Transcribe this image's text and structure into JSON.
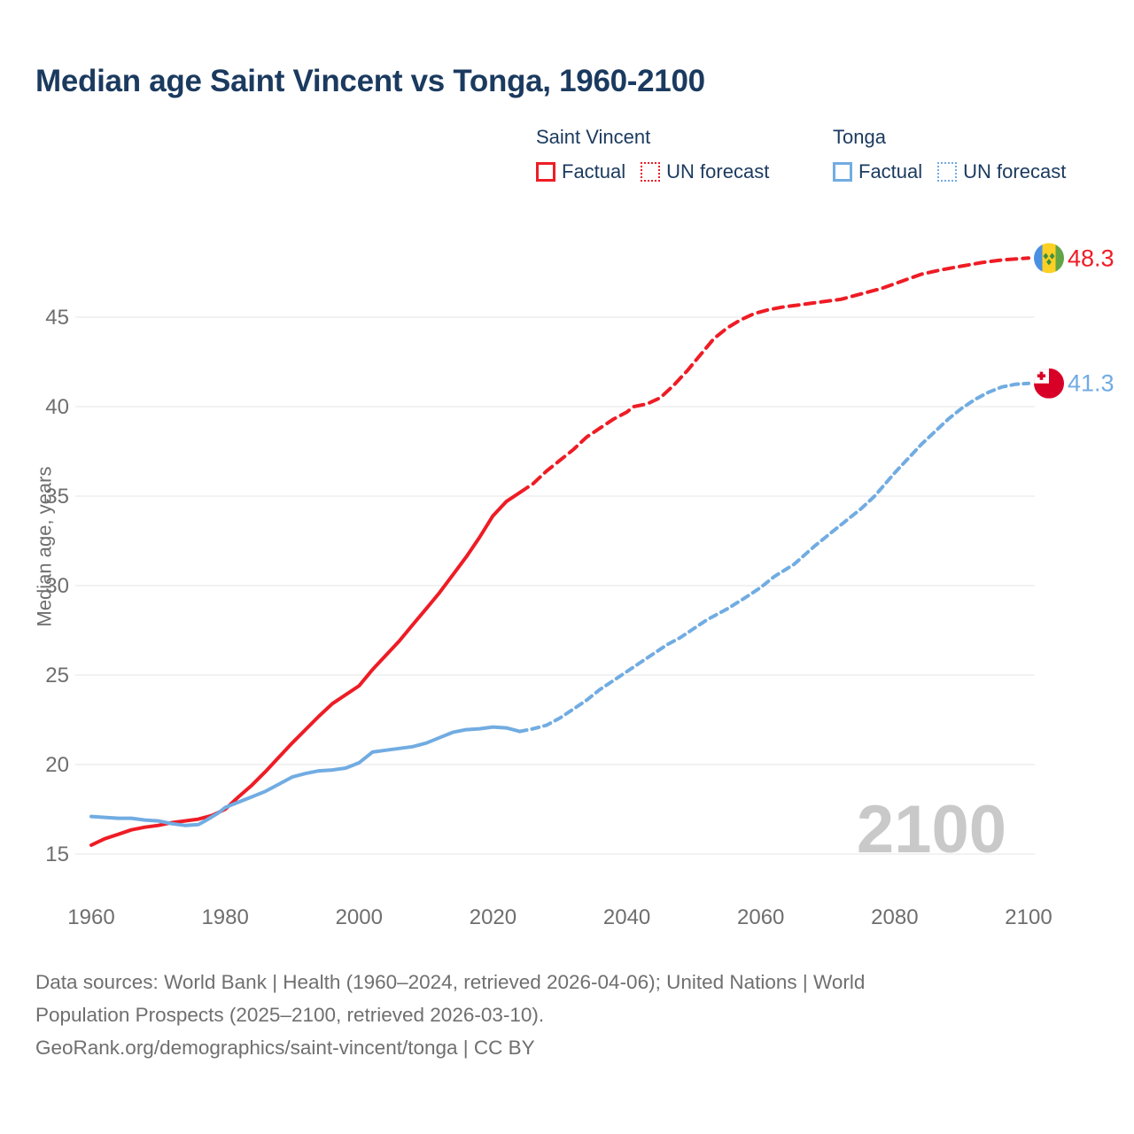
{
  "title": "Median age Saint Vincent vs Tonga, 1960-2100",
  "legend": {
    "groups": [
      {
        "name": "Saint Vincent",
        "color": "#ee1c25",
        "items": [
          {
            "label": "Factual",
            "style": "solid"
          },
          {
            "label": "UN forecast",
            "style": "dotted"
          }
        ]
      },
      {
        "name": "Tonga",
        "color": "#71ace2",
        "items": [
          {
            "label": "Factual",
            "style": "solid"
          },
          {
            "label": "UN forecast",
            "style": "dotted"
          }
        ]
      }
    ]
  },
  "chart_data": {
    "type": "line",
    "title": "Median age Saint Vincent vs Tonga, 1960-2100",
    "xlabel": "",
    "ylabel": "Median age, years",
    "x_ticks": [
      1960,
      1980,
      2000,
      2020,
      2040,
      2060,
      2080,
      2100
    ],
    "y_ticks": [
      15,
      20,
      25,
      30,
      35,
      40,
      45
    ],
    "xlim": [
      1958,
      2113
    ],
    "ylim": [
      14.5,
      49.5
    ],
    "grid": "horizontal",
    "legend_position": "top-right",
    "watermark": "2100",
    "series": [
      {
        "key": "sv-factual",
        "name": "Saint Vincent — Factual",
        "color": "#ee1c25",
        "dashed": false,
        "points": [
          [
            1960,
            15.5
          ],
          [
            1962,
            15.85
          ],
          [
            1964,
            16.1
          ],
          [
            1966,
            16.35
          ],
          [
            1968,
            16.5
          ],
          [
            1970,
            16.6
          ],
          [
            1972,
            16.75
          ],
          [
            1974,
            16.85
          ],
          [
            1976,
            16.95
          ],
          [
            1978,
            17.15
          ],
          [
            1980,
            17.5
          ],
          [
            1982,
            18.2
          ],
          [
            1984,
            18.85
          ],
          [
            1986,
            19.6
          ],
          [
            1988,
            20.4
          ],
          [
            1990,
            21.2
          ],
          [
            1992,
            21.95
          ],
          [
            1994,
            22.7
          ],
          [
            1996,
            23.4
          ],
          [
            1998,
            23.9
          ],
          [
            2000,
            24.4
          ],
          [
            2002,
            25.3
          ],
          [
            2004,
            26.1
          ],
          [
            2006,
            26.9
          ],
          [
            2008,
            27.8
          ],
          [
            2010,
            28.7
          ],
          [
            2012,
            29.6
          ],
          [
            2014,
            30.6
          ],
          [
            2016,
            31.6
          ],
          [
            2018,
            32.7
          ],
          [
            2020,
            33.9
          ],
          [
            2022,
            34.7
          ],
          [
            2024,
            35.2
          ]
        ]
      },
      {
        "key": "sv-forecast",
        "name": "Saint Vincent — UN forecast",
        "color": "#ee1c25",
        "dashed": true,
        "dash": "11 7",
        "points": [
          [
            2024,
            35.2
          ],
          [
            2026,
            35.7
          ],
          [
            2028,
            36.4
          ],
          [
            2030,
            37.0
          ],
          [
            2032,
            37.6
          ],
          [
            2034,
            38.3
          ],
          [
            2036,
            38.8
          ],
          [
            2038,
            39.3
          ],
          [
            2040,
            39.7
          ],
          [
            2041,
            40.0
          ],
          [
            2043,
            40.15
          ],
          [
            2045,
            40.5
          ],
          [
            2047,
            41.2
          ],
          [
            2049,
            42.0
          ],
          [
            2051,
            42.9
          ],
          [
            2053,
            43.8
          ],
          [
            2055,
            44.4
          ],
          [
            2057,
            44.85
          ],
          [
            2059,
            45.2
          ],
          [
            2061,
            45.4
          ],
          [
            2063,
            45.55
          ],
          [
            2066,
            45.7
          ],
          [
            2069,
            45.85
          ],
          [
            2072,
            46.0
          ],
          [
            2075,
            46.3
          ],
          [
            2078,
            46.6
          ],
          [
            2081,
            47.0
          ],
          [
            2084,
            47.4
          ],
          [
            2087,
            47.65
          ],
          [
            2090,
            47.85
          ],
          [
            2093,
            48.05
          ],
          [
            2096,
            48.2
          ],
          [
            2100,
            48.3
          ]
        ]
      },
      {
        "key": "tonga-factual",
        "name": "Tonga — Factual",
        "color": "#71ace2",
        "dashed": false,
        "points": [
          [
            1960,
            17.1
          ],
          [
            1962,
            17.05
          ],
          [
            1964,
            17.0
          ],
          [
            1966,
            17.0
          ],
          [
            1968,
            16.9
          ],
          [
            1970,
            16.85
          ],
          [
            1972,
            16.7
          ],
          [
            1974,
            16.6
          ],
          [
            1976,
            16.65
          ],
          [
            1977,
            16.85
          ],
          [
            1979,
            17.3
          ],
          [
            1980,
            17.6
          ],
          [
            1982,
            17.9
          ],
          [
            1984,
            18.2
          ],
          [
            1986,
            18.5
          ],
          [
            1988,
            18.9
          ],
          [
            1990,
            19.3
          ],
          [
            1992,
            19.5
          ],
          [
            1994,
            19.65
          ],
          [
            1996,
            19.7
          ],
          [
            1998,
            19.8
          ],
          [
            2000,
            20.1
          ],
          [
            2002,
            20.7
          ],
          [
            2004,
            20.8
          ],
          [
            2006,
            20.9
          ],
          [
            2008,
            21.0
          ],
          [
            2010,
            21.2
          ],
          [
            2012,
            21.5
          ],
          [
            2014,
            21.8
          ],
          [
            2016,
            21.95
          ],
          [
            2018,
            22.0
          ],
          [
            2020,
            22.1
          ],
          [
            2022,
            22.05
          ],
          [
            2024,
            21.85
          ]
        ]
      },
      {
        "key": "tonga-forecast",
        "name": "Tonga — UN forecast",
        "color": "#71ace2",
        "dashed": true,
        "dash": "8 6",
        "points": [
          [
            2024,
            21.85
          ],
          [
            2026,
            22.0
          ],
          [
            2028,
            22.2
          ],
          [
            2030,
            22.6
          ],
          [
            2032,
            23.1
          ],
          [
            2034,
            23.6
          ],
          [
            2036,
            24.2
          ],
          [
            2038,
            24.7
          ],
          [
            2040,
            25.2
          ],
          [
            2042,
            25.7
          ],
          [
            2044,
            26.2
          ],
          [
            2046,
            26.7
          ],
          [
            2048,
            27.1
          ],
          [
            2050,
            27.6
          ],
          [
            2052,
            28.1
          ],
          [
            2055,
            28.7
          ],
          [
            2058,
            29.4
          ],
          [
            2060,
            29.9
          ],
          [
            2062,
            30.5
          ],
          [
            2065,
            31.2
          ],
          [
            2068,
            32.2
          ],
          [
            2070,
            32.8
          ],
          [
            2072,
            33.4
          ],
          [
            2075,
            34.3
          ],
          [
            2077,
            35.0
          ],
          [
            2080,
            36.3
          ],
          [
            2082,
            37.1
          ],
          [
            2084,
            37.9
          ],
          [
            2086,
            38.6
          ],
          [
            2088,
            39.3
          ],
          [
            2090,
            39.9
          ],
          [
            2092,
            40.4
          ],
          [
            2094,
            40.8
          ],
          [
            2096,
            41.1
          ],
          [
            2098,
            41.25
          ],
          [
            2100,
            41.3
          ]
        ]
      }
    ],
    "end_labels": [
      {
        "series": "Saint Vincent",
        "value": "48.3",
        "y": 48.3,
        "flag": "saint-vincent",
        "color": "#ee1c25"
      },
      {
        "series": "Tonga",
        "value": "41.3",
        "y": 41.3,
        "flag": "tonga",
        "color": "#71ace2"
      }
    ]
  },
  "footer": {
    "lines": [
      "Data sources: World Bank | Health (1960–2024, retrieved 2026-04-06); United Nations | World",
      "Population Prospects (2025–2100, retrieved 2026-03-10).",
      "GeoRank.org/demographics/saint-vincent/tonga | CC BY"
    ]
  },
  "colors": {
    "saint_vincent": "#ee1c25",
    "tonga": "#71ace2",
    "title_text": "#1b3a5f",
    "axis_text": "#6e6e6e",
    "gridline": "#eaeaea",
    "watermark": "#c9c9c9",
    "footer_text": "#6f6f6f"
  }
}
